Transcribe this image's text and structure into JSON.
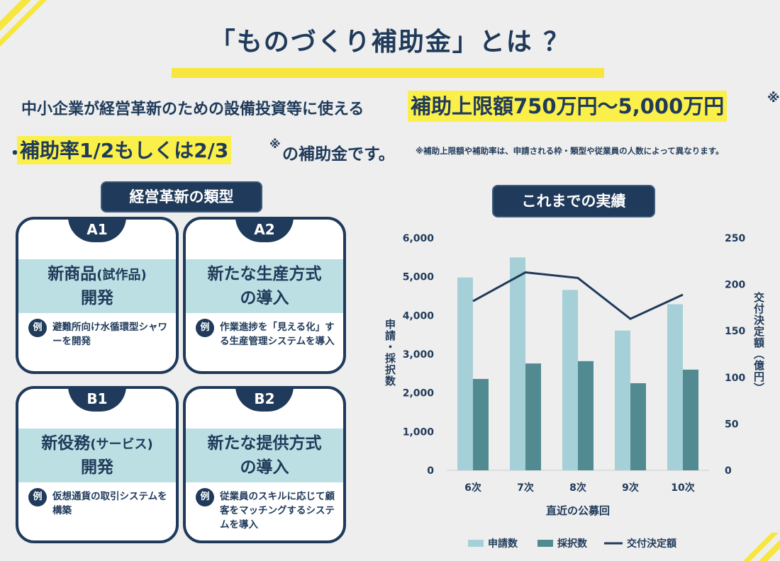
{
  "header": {
    "title": "「ものづくり補助金」とは ？"
  },
  "intro": {
    "line1_plain": "中小企業が経営革新のための設備投資等に使える",
    "line1_highlight": "補助上限額750万円～5,000万円",
    "line1_mark": "※",
    "line2_bullet": "・",
    "line2_highlight": "補助率1/2もしくは2/3",
    "line2_mark": "※",
    "line2_tail": "の補助金です。",
    "note": "※補助上限額や補助率は、申請される枠・類型や従業員の人数によって異なります。"
  },
  "types_section": {
    "label": "経営革新の類型",
    "example_badge": "例",
    "cards": [
      {
        "code": "A1",
        "title_line1": "新商品",
        "title_small": "(試作品)",
        "title_line2": "開発",
        "example": "避難所向け水循環型シャワーを開発"
      },
      {
        "code": "A2",
        "title_line1": "新たな生産方式",
        "title_small": "",
        "title_line2": "の導入",
        "example": "作業進捗を「見える化」する生産管理システムを導入"
      },
      {
        "code": "B1",
        "title_line1": "新役務",
        "title_small": "(サービス)",
        "title_line2": "開発",
        "example": "仮想通貨の取引システムを構築"
      },
      {
        "code": "B2",
        "title_line1": "新たな提供方式",
        "title_small": "",
        "title_line2": "の導入",
        "example": "従業員のスキルに応じて顧客をマッチングするシステムを導入"
      }
    ]
  },
  "results_section": {
    "label": "これまでの実績"
  },
  "colors": {
    "navy": "#1f3a5a",
    "yellow": "#fbf04a",
    "light_teal": "#a6d0d7",
    "dark_teal": "#518b91",
    "band": "#bcdfe3"
  },
  "chart_data": {
    "type": "bar",
    "categories": [
      "6次",
      "7次",
      "8次",
      "9次",
      "10次"
    ],
    "series": [
      {
        "name": "申請数",
        "kind": "bar",
        "axis": "left",
        "color": "#a6d0d7",
        "values": [
          4980,
          5500,
          4660,
          3610,
          4290
        ]
      },
      {
        "name": "採択数",
        "kind": "bar",
        "axis": "left",
        "color": "#518b91",
        "values": [
          2360,
          2760,
          2820,
          2250,
          2600
        ]
      },
      {
        "name": "交付決定額",
        "kind": "line",
        "axis": "right",
        "color": "#1f3a5a",
        "values": [
          182,
          213,
          207,
          163,
          189
        ]
      }
    ],
    "xlabel": "直近の公募回",
    "ylabel_left": "申請・採択数",
    "ylabel_right": "交付決定額（億円）",
    "ylim_left": [
      0,
      6000
    ],
    "ylim_right": [
      0,
      250
    ],
    "yticks_left": [
      "6,000",
      "5,000",
      "4,000",
      "3,000",
      "2,000",
      "1,000",
      "0"
    ],
    "yticks_right": [
      "250",
      "200",
      "150",
      "100",
      "50",
      "0"
    ],
    "grid": false,
    "legend_position": "bottom"
  }
}
